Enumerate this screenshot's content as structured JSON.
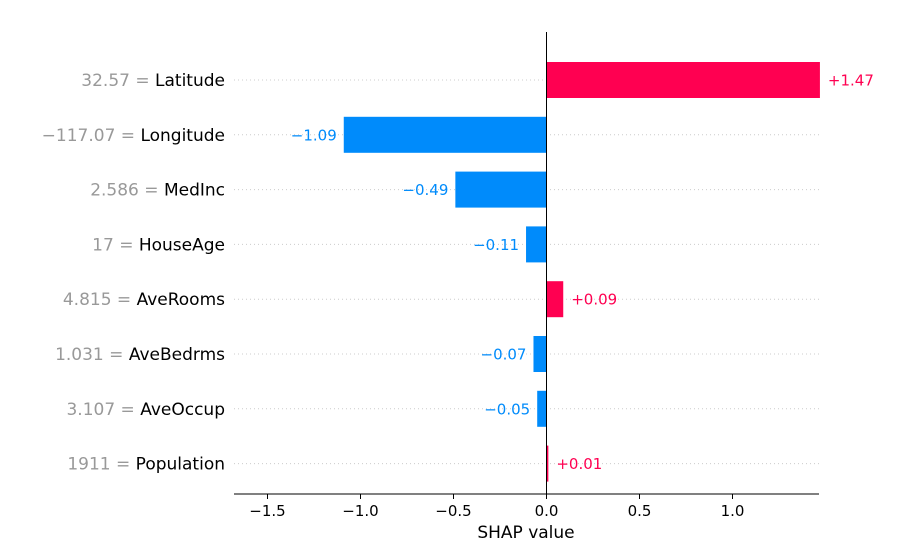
{
  "chart_data": {
    "type": "bar",
    "orientation": "horizontal",
    "xlabel": "SHAP value",
    "xlim": [
      -1.64,
      1.47
    ],
    "xticks": [
      -1.5,
      -1.0,
      -0.5,
      0.0,
      0.5,
      1.0
    ],
    "xtick_labels": [
      "−1.5",
      "−1.0",
      "−0.5",
      "0.0",
      "0.5",
      "1.0"
    ],
    "grid": "horizontal dotted",
    "colors": {
      "positive": "#ff0051",
      "negative": "#008bfb",
      "feature_value": "#999999",
      "axis": "#000000"
    },
    "features": [
      {
        "value_label": "32.57 =",
        "feature": "Latitude",
        "shap": 1.47,
        "label": "+1.47"
      },
      {
        "value_label": "−117.07 =",
        "feature": "Longitude",
        "shap": -1.09,
        "label": "−1.09"
      },
      {
        "value_label": "2.586 =",
        "feature": "MedInc",
        "shap": -0.49,
        "label": "−0.49"
      },
      {
        "value_label": "17 =",
        "feature": "HouseAge",
        "shap": -0.11,
        "label": "−0.11"
      },
      {
        "value_label": "4.815 =",
        "feature": "AveRooms",
        "shap": 0.09,
        "label": "+0.09"
      },
      {
        "value_label": "1.031 =",
        "feature": "AveBedrms",
        "shap": -0.07,
        "label": "−0.07"
      },
      {
        "value_label": "3.107 =",
        "feature": "AveOccup",
        "shap": -0.05,
        "label": "−0.05"
      },
      {
        "value_label": "1911 =",
        "feature": "Population",
        "shap": 0.01,
        "label": "+0.01"
      }
    ]
  }
}
